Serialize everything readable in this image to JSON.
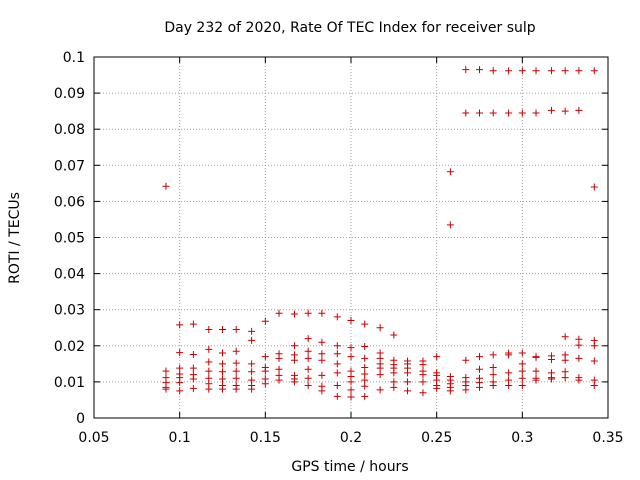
{
  "chart_data": {
    "type": "scatter",
    "title": "Day 232 of 2020, Rate Of TEC Index for receiver sulp",
    "xlabel": "GPS time / hours",
    "ylabel": "ROTI / TECUs",
    "xlim": [
      0.05,
      0.35
    ],
    "ylim": [
      0,
      0.1
    ],
    "xticks": [
      0.05,
      0.1,
      0.15,
      0.2,
      0.25,
      0.3,
      0.35
    ],
    "xtick_labels": [
      "0.05",
      "0.1",
      "0.15",
      "0.2",
      "0.25",
      "0.3",
      "0.35"
    ],
    "yticks": [
      0,
      0.01,
      0.02,
      0.03,
      0.04,
      0.05,
      0.06,
      0.07,
      0.08,
      0.09,
      0.1
    ],
    "ytick_labels": [
      "0",
      "0.01",
      "0.02",
      "0.03",
      "0.04",
      "0.05",
      "0.06",
      "0.07",
      "0.08",
      "0.09",
      "0.1"
    ],
    "grid": true,
    "marker": "+",
    "color": "#cc0000",
    "points": [
      [
        0.092,
        0.0642
      ],
      [
        0.092,
        0.013
      ],
      [
        0.092,
        0.0112
      ],
      [
        0.092,
        0.0098
      ],
      [
        0.092,
        0.0085
      ],
      [
        0.092,
        0.008
      ],
      [
        0.1,
        0.0258
      ],
      [
        0.1,
        0.0181
      ],
      [
        0.1,
        0.0138
      ],
      [
        0.1,
        0.0122
      ],
      [
        0.1,
        0.0112
      ],
      [
        0.1,
        0.0098
      ],
      [
        0.1,
        0.0075
      ],
      [
        0.108,
        0.026
      ],
      [
        0.108,
        0.0176
      ],
      [
        0.108,
        0.0138
      ],
      [
        0.108,
        0.012
      ],
      [
        0.108,
        0.0108
      ],
      [
        0.108,
        0.0082
      ],
      [
        0.117,
        0.0245
      ],
      [
        0.117,
        0.019
      ],
      [
        0.117,
        0.0155
      ],
      [
        0.117,
        0.013
      ],
      [
        0.117,
        0.011
      ],
      [
        0.117,
        0.0095
      ],
      [
        0.117,
        0.008
      ],
      [
        0.125,
        0.0245
      ],
      [
        0.125,
        0.018
      ],
      [
        0.125,
        0.015
      ],
      [
        0.125,
        0.0128
      ],
      [
        0.125,
        0.0108
      ],
      [
        0.125,
        0.009
      ],
      [
        0.125,
        0.008
      ],
      [
        0.133,
        0.0245
      ],
      [
        0.133,
        0.0185
      ],
      [
        0.133,
        0.0152
      ],
      [
        0.133,
        0.013
      ],
      [
        0.133,
        0.011
      ],
      [
        0.133,
        0.009
      ],
      [
        0.133,
        0.008
      ],
      [
        0.142,
        0.024
      ],
      [
        0.142,
        0.0215
      ],
      [
        0.142,
        0.015
      ],
      [
        0.142,
        0.0128
      ],
      [
        0.142,
        0.0105
      ],
      [
        0.142,
        0.009
      ],
      [
        0.142,
        0.008
      ],
      [
        0.15,
        0.0268
      ],
      [
        0.15,
        0.017
      ],
      [
        0.15,
        0.014
      ],
      [
        0.15,
        0.013
      ],
      [
        0.15,
        0.0108
      ],
      [
        0.15,
        0.0095
      ],
      [
        0.158,
        0.029
      ],
      [
        0.158,
        0.0178
      ],
      [
        0.158,
        0.0165
      ],
      [
        0.158,
        0.0135
      ],
      [
        0.158,
        0.0118
      ],
      [
        0.158,
        0.0105
      ],
      [
        0.167,
        0.0288
      ],
      [
        0.167,
        0.02
      ],
      [
        0.167,
        0.0175
      ],
      [
        0.167,
        0.016
      ],
      [
        0.167,
        0.0118
      ],
      [
        0.167,
        0.0108
      ],
      [
        0.167,
        0.01
      ],
      [
        0.175,
        0.029
      ],
      [
        0.175,
        0.022
      ],
      [
        0.175,
        0.0185
      ],
      [
        0.175,
        0.0165
      ],
      [
        0.175,
        0.0135
      ],
      [
        0.175,
        0.011
      ],
      [
        0.175,
        0.009
      ],
      [
        0.183,
        0.029
      ],
      [
        0.183,
        0.021
      ],
      [
        0.183,
        0.0178
      ],
      [
        0.183,
        0.016
      ],
      [
        0.183,
        0.0118
      ],
      [
        0.183,
        0.0088
      ],
      [
        0.183,
        0.0075
      ],
      [
        0.192,
        0.028
      ],
      [
        0.192,
        0.02
      ],
      [
        0.192,
        0.0178
      ],
      [
        0.192,
        0.015
      ],
      [
        0.192,
        0.0125
      ],
      [
        0.192,
        0.009
      ],
      [
        0.192,
        0.006
      ],
      [
        0.2,
        0.027
      ],
      [
        0.2,
        0.0195
      ],
      [
        0.2,
        0.017
      ],
      [
        0.2,
        0.013
      ],
      [
        0.2,
        0.0115
      ],
      [
        0.2,
        0.01
      ],
      [
        0.2,
        0.0078
      ],
      [
        0.2,
        0.0058
      ],
      [
        0.208,
        0.026
      ],
      [
        0.208,
        0.0198
      ],
      [
        0.208,
        0.0165
      ],
      [
        0.208,
        0.014
      ],
      [
        0.208,
        0.0122
      ],
      [
        0.208,
        0.0105
      ],
      [
        0.208,
        0.0088
      ],
      [
        0.208,
        0.006
      ],
      [
        0.217,
        0.025
      ],
      [
        0.217,
        0.018
      ],
      [
        0.217,
        0.0165
      ],
      [
        0.217,
        0.015
      ],
      [
        0.217,
        0.0138
      ],
      [
        0.217,
        0.012
      ],
      [
        0.217,
        0.0078
      ],
      [
        0.225,
        0.023
      ],
      [
        0.225,
        0.016
      ],
      [
        0.225,
        0.0148
      ],
      [
        0.225,
        0.0138
      ],
      [
        0.225,
        0.0125
      ],
      [
        0.225,
        0.01
      ],
      [
        0.225,
        0.0085
      ],
      [
        0.233,
        0.0158
      ],
      [
        0.233,
        0.015
      ],
      [
        0.233,
        0.0138
      ],
      [
        0.233,
        0.0125
      ],
      [
        0.233,
        0.01
      ],
      [
        0.233,
        0.0075
      ],
      [
        0.242,
        0.0158
      ],
      [
        0.242,
        0.0148
      ],
      [
        0.242,
        0.013
      ],
      [
        0.242,
        0.012
      ],
      [
        0.242,
        0.01
      ],
      [
        0.242,
        0.007
      ],
      [
        0.25,
        0.017
      ],
      [
        0.25,
        0.0125
      ],
      [
        0.25,
        0.0118
      ],
      [
        0.25,
        0.0105
      ],
      [
        0.25,
        0.009
      ],
      [
        0.25,
        0.0082
      ],
      [
        0.258,
        0.0682
      ],
      [
        0.258,
        0.0535
      ],
      [
        0.258,
        0.0115
      ],
      [
        0.258,
        0.0105
      ],
      [
        0.258,
        0.0095
      ],
      [
        0.258,
        0.0085
      ],
      [
        0.258,
        0.0075
      ],
      [
        0.267,
        0.0965
      ],
      [
        0.267,
        0.0845
      ],
      [
        0.267,
        0.016
      ],
      [
        0.267,
        0.0112
      ],
      [
        0.267,
        0.01
      ],
      [
        0.267,
        0.009
      ],
      [
        0.267,
        0.0078
      ],
      [
        0.275,
        0.0965
      ],
      [
        0.275,
        0.0845
      ],
      [
        0.275,
        0.017
      ],
      [
        0.275,
        0.0135
      ],
      [
        0.275,
        0.011
      ],
      [
        0.275,
        0.0098
      ],
      [
        0.275,
        0.0085
      ],
      [
        0.283,
        0.0962
      ],
      [
        0.283,
        0.0845
      ],
      [
        0.283,
        0.0175
      ],
      [
        0.283,
        0.014
      ],
      [
        0.283,
        0.012
      ],
      [
        0.283,
        0.01
      ],
      [
        0.283,
        0.009
      ],
      [
        0.292,
        0.0962
      ],
      [
        0.292,
        0.0845
      ],
      [
        0.292,
        0.018
      ],
      [
        0.292,
        0.0175
      ],
      [
        0.292,
        0.0125
      ],
      [
        0.292,
        0.0105
      ],
      [
        0.292,
        0.009
      ],
      [
        0.3,
        0.0962
      ],
      [
        0.3,
        0.0845
      ],
      [
        0.3,
        0.018
      ],
      [
        0.3,
        0.015
      ],
      [
        0.3,
        0.013
      ],
      [
        0.3,
        0.011
      ],
      [
        0.3,
        0.009
      ],
      [
        0.308,
        0.0962
      ],
      [
        0.308,
        0.0845
      ],
      [
        0.308,
        0.017
      ],
      [
        0.308,
        0.0168
      ],
      [
        0.308,
        0.013
      ],
      [
        0.308,
        0.011
      ],
      [
        0.308,
        0.0105
      ],
      [
        0.317,
        0.0962
      ],
      [
        0.317,
        0.0852
      ],
      [
        0.317,
        0.0172
      ],
      [
        0.317,
        0.0162
      ],
      [
        0.317,
        0.0125
      ],
      [
        0.317,
        0.0112
      ],
      [
        0.317,
        0.0108
      ],
      [
        0.325,
        0.0962
      ],
      [
        0.325,
        0.085
      ],
      [
        0.325,
        0.0225
      ],
      [
        0.325,
        0.0175
      ],
      [
        0.325,
        0.016
      ],
      [
        0.325,
        0.0128
      ],
      [
        0.325,
        0.0112
      ],
      [
        0.333,
        0.0962
      ],
      [
        0.333,
        0.0852
      ],
      [
        0.333,
        0.0218
      ],
      [
        0.333,
        0.0202
      ],
      [
        0.333,
        0.0165
      ],
      [
        0.333,
        0.0112
      ],
      [
        0.333,
        0.0105
      ],
      [
        0.342,
        0.0962
      ],
      [
        0.342,
        0.064
      ],
      [
        0.342,
        0.0215
      ],
      [
        0.342,
        0.02
      ],
      [
        0.342,
        0.0158
      ],
      [
        0.342,
        0.0105
      ],
      [
        0.342,
        0.009
      ]
    ]
  }
}
